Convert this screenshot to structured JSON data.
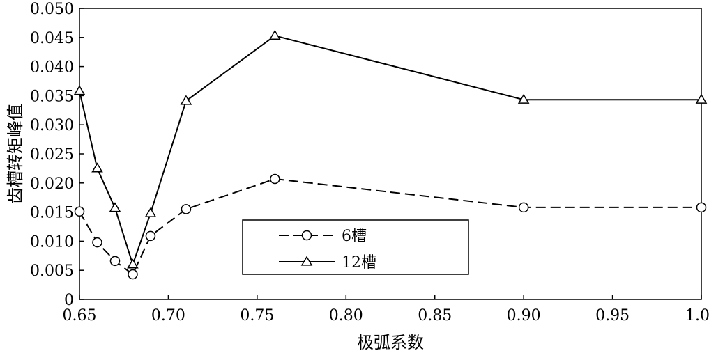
{
  "chart_data": {
    "type": "line",
    "xlabel": "极弧系数",
    "ylabel": "齿槽转矩峰值",
    "xlim": [
      0.65,
      1.0
    ],
    "ylim": [
      0,
      0.05
    ],
    "x_ticks": [
      "0.65",
      "0.70",
      "0.75",
      "0.80",
      "0.85",
      "0.90",
      "0.95",
      "1.0"
    ],
    "y_ticks": [
      "0",
      "0.005",
      "0.010",
      "0.015",
      "0.020",
      "0.025",
      "0.030",
      "0.035",
      "0.040",
      "0.045",
      "0.050"
    ],
    "grid": false,
    "legend_position": "bottom-center",
    "series": [
      {
        "name": "6槽",
        "marker": "circle",
        "line_style": "dashed",
        "x": [
          0.65,
          0.66,
          0.67,
          0.68,
          0.69,
          0.71,
          0.76,
          0.9,
          1.0
        ],
        "y": [
          0.0151,
          0.0098,
          0.0066,
          0.0043,
          0.0109,
          0.0155,
          0.0207,
          0.0158,
          0.0158
        ]
      },
      {
        "name": "12槽",
        "marker": "triangle",
        "line_style": "solid",
        "x": [
          0.65,
          0.66,
          0.67,
          0.68,
          0.69,
          0.71,
          0.76,
          0.9,
          1.0
        ],
        "y": [
          0.0358,
          0.0225,
          0.0157,
          0.006,
          0.0148,
          0.0341,
          0.0453,
          0.0343,
          0.0343
        ]
      }
    ]
  }
}
